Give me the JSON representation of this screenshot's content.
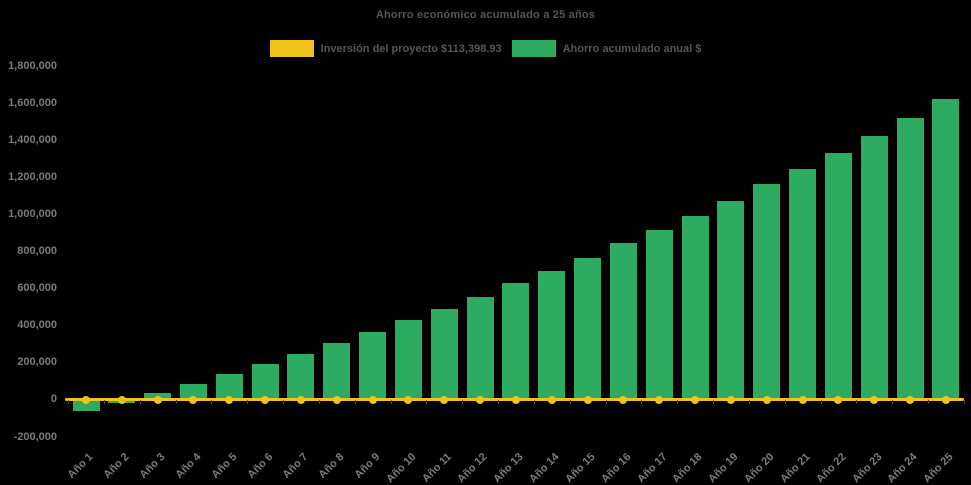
{
  "title": "Ahorro económico acumulado a 25 años",
  "legend": {
    "items": [
      {
        "label": "Inversión del proyecto $113,398.93",
        "color": "#EFC319",
        "series": "line"
      },
      {
        "label": "Ahorro acumulado anual $",
        "color": "#2DAB60",
        "series": "bar"
      }
    ]
  },
  "colors": {
    "background": "#000000",
    "bar_green": "#2DAB60",
    "line_yellow": "#EFC319",
    "title_text": "#565656",
    "axis_text": "#7b7b7b"
  },
  "chart_data": {
    "type": "bar",
    "title": "Ahorro económico acumulado a 25 años",
    "categories": [
      "Año 1",
      "Año 2",
      "Año 3",
      "Año 4",
      "Año 5",
      "Año 6",
      "Año 7",
      "Año 8",
      "Año 9",
      "Año 10",
      "Año 11",
      "Año 12",
      "Año 13",
      "Año 14",
      "Año 15",
      "Año 16",
      "Año 17",
      "Año 18",
      "Año 19",
      "Año 20",
      "Año 21",
      "Año 22",
      "Año 23",
      "Año 24",
      "Año 25"
    ],
    "series": [
      {
        "name": "Ahorro acumulado anual $",
        "type": "bar",
        "color": "#2DAB60",
        "values": [
          -62000,
          -20000,
          35000,
          85000,
          135000,
          192000,
          248000,
          305000,
          364000,
          427000,
          488000,
          555000,
          627000,
          693000,
          763000,
          843000,
          915000,
          990000,
          1070000,
          1162000,
          1243000,
          1330000,
          1421000,
          1519000,
          1621000
        ]
      },
      {
        "name": "Inversión del proyecto $113,398.93",
        "type": "line",
        "color": "#EFC319",
        "marker": "circle",
        "plotted_value": 0,
        "note": "flat horizontal line with a round marker at every year, drawn at the zero axis level"
      }
    ],
    "xlabel": "",
    "ylabel": "",
    "ylim": [
      -200000,
      1800000
    ],
    "ytick_step": 200000,
    "ytick_labels": [
      "1,800,000",
      "1,600,000",
      "1,400,000",
      "1,200,000",
      "1,000,000",
      "800,000",
      "600,000",
      "400,000",
      "200,000",
      "0",
      "-200,000"
    ],
    "grid": false,
    "legend_position": "top",
    "x_label_rotation_deg": -45
  }
}
